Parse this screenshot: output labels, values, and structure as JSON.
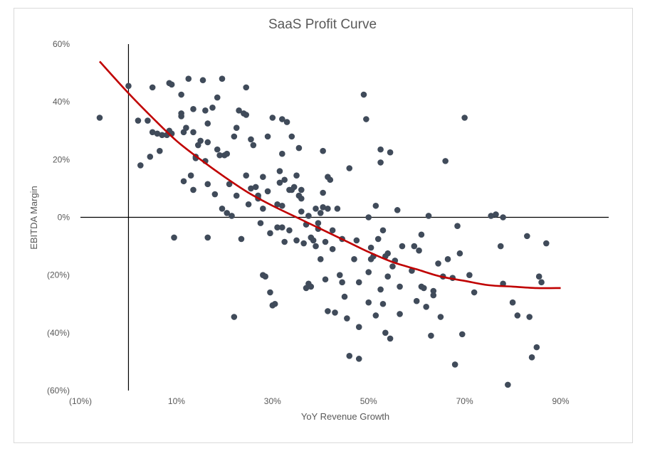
{
  "chart_data": {
    "type": "scatter",
    "title": "SaaS Profit Curve",
    "xlabel": "YoY Revenue Growth",
    "ylabel": "EBITDA Margin",
    "xlim": [
      -0.1,
      1.0
    ],
    "ylim": [
      -0.6,
      0.6
    ],
    "x_ticks": [
      -0.1,
      0.1,
      0.3,
      0.5,
      0.7,
      0.9
    ],
    "x_tick_labels": [
      "(10%)",
      "10%",
      "30%",
      "50%",
      "70%",
      "90%"
    ],
    "y_ticks": [
      0.6,
      0.4,
      0.2,
      0.0,
      -0.2,
      -0.4,
      -0.6
    ],
    "y_tick_labels": [
      "60%",
      "40%",
      "20%",
      "0%",
      "(20%)",
      "(40%)",
      "(60%)"
    ],
    "grid": false,
    "colors": {
      "points": "#404b5a",
      "trendline": "#c00000",
      "axes": "#000000",
      "text": "#595959"
    },
    "trendline": {
      "type": "polynomial",
      "x": [
        -0.06,
        0.0,
        0.05,
        0.1,
        0.15,
        0.2,
        0.25,
        0.3,
        0.35,
        0.4,
        0.45,
        0.5,
        0.55,
        0.6,
        0.65,
        0.7,
        0.75,
        0.8,
        0.85,
        0.9
      ],
      "y": [
        0.54,
        0.43,
        0.345,
        0.265,
        0.2,
        0.14,
        0.085,
        0.04,
        0.0,
        -0.04,
        -0.08,
        -0.12,
        -0.155,
        -0.18,
        -0.205,
        -0.22,
        -0.235,
        -0.24,
        -0.245,
        -0.245
      ]
    },
    "points": [
      [
        -0.06,
        0.345
      ],
      [
        0.0,
        0.455
      ],
      [
        0.02,
        0.335
      ],
      [
        0.025,
        0.18
      ],
      [
        0.04,
        0.335
      ],
      [
        0.045,
        0.21
      ],
      [
        0.05,
        0.45
      ],
      [
        0.05,
        0.295
      ],
      [
        0.06,
        0.29
      ],
      [
        0.065,
        0.23
      ],
      [
        0.07,
        0.285
      ],
      [
        0.08,
        0.285
      ],
      [
        0.085,
        0.465
      ],
      [
        0.085,
        0.3
      ],
      [
        0.09,
        0.46
      ],
      [
        0.09,
        0.29
      ],
      [
        0.095,
        -0.07
      ],
      [
        0.11,
        0.425
      ],
      [
        0.11,
        0.36
      ],
      [
        0.11,
        0.35
      ],
      [
        0.115,
        0.295
      ],
      [
        0.115,
        0.125
      ],
      [
        0.12,
        0.31
      ],
      [
        0.125,
        0.48
      ],
      [
        0.13,
        0.145
      ],
      [
        0.135,
        0.375
      ],
      [
        0.135,
        0.295
      ],
      [
        0.135,
        0.095
      ],
      [
        0.14,
        0.21
      ],
      [
        0.14,
        0.205
      ],
      [
        0.145,
        0.25
      ],
      [
        0.15,
        0.265
      ],
      [
        0.155,
        0.475
      ],
      [
        0.16,
        0.37
      ],
      [
        0.16,
        0.195
      ],
      [
        0.165,
        0.325
      ],
      [
        0.165,
        0.26
      ],
      [
        0.165,
        0.115
      ],
      [
        0.165,
        -0.07
      ],
      [
        0.175,
        0.38
      ],
      [
        0.18,
        0.08
      ],
      [
        0.185,
        0.415
      ],
      [
        0.185,
        0.235
      ],
      [
        0.19,
        0.215
      ],
      [
        0.195,
        0.48
      ],
      [
        0.195,
        0.03
      ],
      [
        0.2,
        0.215
      ],
      [
        0.205,
        0.22
      ],
      [
        0.205,
        0.015
      ],
      [
        0.21,
        0.115
      ],
      [
        0.215,
        0.005
      ],
      [
        0.22,
        0.28
      ],
      [
        0.22,
        -0.345
      ],
      [
        0.225,
        0.31
      ],
      [
        0.225,
        0.075
      ],
      [
        0.23,
        0.37
      ],
      [
        0.235,
        -0.075
      ],
      [
        0.24,
        0.36
      ],
      [
        0.245,
        0.355
      ],
      [
        0.245,
        0.145
      ],
      [
        0.245,
        0.45
      ],
      [
        0.25,
        0.045
      ],
      [
        0.255,
        0.1
      ],
      [
        0.255,
        0.27
      ],
      [
        0.26,
        0.25
      ],
      [
        0.265,
        0.105
      ],
      [
        0.27,
        0.075
      ],
      [
        0.27,
        0.075
      ],
      [
        0.27,
        0.065
      ],
      [
        0.275,
        -0.02
      ],
      [
        0.28,
        0.14
      ],
      [
        0.28,
        0.03
      ],
      [
        0.28,
        -0.2
      ],
      [
        0.285,
        -0.205
      ],
      [
        0.29,
        0.28
      ],
      [
        0.29,
        0.09
      ],
      [
        0.295,
        -0.26
      ],
      [
        0.295,
        -0.055
      ],
      [
        0.3,
        0.345
      ],
      [
        0.3,
        -0.305
      ],
      [
        0.305,
        -0.3
      ],
      [
        0.31,
        0.045
      ],
      [
        0.31,
        -0.035
      ],
      [
        0.315,
        0.16
      ],
      [
        0.315,
        0.12
      ],
      [
        0.32,
        0.34
      ],
      [
        0.32,
        0.22
      ],
      [
        0.32,
        0.04
      ],
      [
        0.32,
        -0.035
      ],
      [
        0.325,
        0.13
      ],
      [
        0.325,
        -0.085
      ],
      [
        0.33,
        0.33
      ],
      [
        0.335,
        0.095
      ],
      [
        0.335,
        -0.045
      ],
      [
        0.34,
        0.28
      ],
      [
        0.34,
        0.095
      ],
      [
        0.345,
        0.105
      ],
      [
        0.35,
        0.145
      ],
      [
        0.35,
        -0.08
      ],
      [
        0.355,
        0.24
      ],
      [
        0.355,
        0.075
      ],
      [
        0.36,
        0.095
      ],
      [
        0.36,
        0.065
      ],
      [
        0.36,
        0.02
      ],
      [
        0.365,
        -0.09
      ],
      [
        0.37,
        -0.245
      ],
      [
        0.37,
        -0.025
      ],
      [
        0.375,
        -0.23
      ],
      [
        0.375,
        0.005
      ],
      [
        0.38,
        -0.24
      ],
      [
        0.38,
        -0.07
      ],
      [
        0.385,
        -0.08
      ],
      [
        0.39,
        0.03
      ],
      [
        0.39,
        -0.1
      ],
      [
        0.395,
        -0.02
      ],
      [
        0.395,
        -0.04
      ],
      [
        0.4,
        0.015
      ],
      [
        0.4,
        -0.145
      ],
      [
        0.405,
        0.085
      ],
      [
        0.405,
        0.035
      ],
      [
        0.405,
        0.23
      ],
      [
        0.41,
        -0.085
      ],
      [
        0.41,
        -0.215
      ],
      [
        0.415,
        0.03
      ],
      [
        0.415,
        -0.325
      ],
      [
        0.415,
        0.14
      ],
      [
        0.42,
        0.13
      ],
      [
        0.425,
        -0.11
      ],
      [
        0.425,
        -0.045
      ],
      [
        0.43,
        -0.33
      ],
      [
        0.435,
        0.03
      ],
      [
        0.44,
        -0.2
      ],
      [
        0.445,
        -0.075
      ],
      [
        0.445,
        -0.225
      ],
      [
        0.45,
        -0.275
      ],
      [
        0.455,
        -0.35
      ],
      [
        0.46,
        -0.48
      ],
      [
        0.46,
        0.17
      ],
      [
        0.47,
        -0.145
      ],
      [
        0.475,
        -0.08
      ],
      [
        0.48,
        -0.38
      ],
      [
        0.48,
        -0.225
      ],
      [
        0.48,
        -0.49
      ],
      [
        0.49,
        0.425
      ],
      [
        0.495,
        0.34
      ],
      [
        0.5,
        0.0
      ],
      [
        0.5,
        -0.19
      ],
      [
        0.5,
        -0.295
      ],
      [
        0.505,
        -0.105
      ],
      [
        0.505,
        -0.145
      ],
      [
        0.51,
        -0.135
      ],
      [
        0.515,
        0.04
      ],
      [
        0.515,
        -0.34
      ],
      [
        0.52,
        -0.075
      ],
      [
        0.525,
        0.19
      ],
      [
        0.525,
        0.235
      ],
      [
        0.525,
        -0.25
      ],
      [
        0.53,
        -0.045
      ],
      [
        0.53,
        -0.3
      ],
      [
        0.535,
        -0.4
      ],
      [
        0.535,
        -0.135
      ],
      [
        0.54,
        -0.125
      ],
      [
        0.54,
        -0.205
      ],
      [
        0.545,
        0.225
      ],
      [
        0.545,
        -0.42
      ],
      [
        0.55,
        -0.17
      ],
      [
        0.555,
        -0.15
      ],
      [
        0.56,
        0.025
      ],
      [
        0.565,
        -0.24
      ],
      [
        0.565,
        -0.335
      ],
      [
        0.57,
        -0.1
      ],
      [
        0.59,
        -0.185
      ],
      [
        0.595,
        -0.1
      ],
      [
        0.6,
        -0.29
      ],
      [
        0.605,
        -0.115
      ],
      [
        0.61,
        -0.24
      ],
      [
        0.61,
        -0.06
      ],
      [
        0.615,
        -0.245
      ],
      [
        0.62,
        -0.31
      ],
      [
        0.625,
        0.005
      ],
      [
        0.63,
        -0.41
      ],
      [
        0.635,
        -0.255
      ],
      [
        0.635,
        -0.27
      ],
      [
        0.645,
        -0.16
      ],
      [
        0.65,
        -0.345
      ],
      [
        0.655,
        -0.205
      ],
      [
        0.66,
        0.195
      ],
      [
        0.665,
        -0.145
      ],
      [
        0.675,
        -0.21
      ],
      [
        0.68,
        -0.51
      ],
      [
        0.685,
        -0.03
      ],
      [
        0.69,
        -0.125
      ],
      [
        0.695,
        -0.405
      ],
      [
        0.7,
        0.345
      ],
      [
        0.71,
        -0.2
      ],
      [
        0.72,
        -0.26
      ],
      [
        0.755,
        0.005
      ],
      [
        0.765,
        0.01
      ],
      [
        0.775,
        -0.1
      ],
      [
        0.78,
        -0.23
      ],
      [
        0.78,
        0.0
      ],
      [
        0.79,
        -0.58
      ],
      [
        0.8,
        -0.295
      ],
      [
        0.81,
        -0.34
      ],
      [
        0.83,
        -0.065
      ],
      [
        0.835,
        -0.345
      ],
      [
        0.84,
        -0.485
      ],
      [
        0.85,
        -0.45
      ],
      [
        0.855,
        -0.205
      ],
      [
        0.86,
        -0.225
      ],
      [
        0.87,
        -0.09
      ]
    ]
  }
}
